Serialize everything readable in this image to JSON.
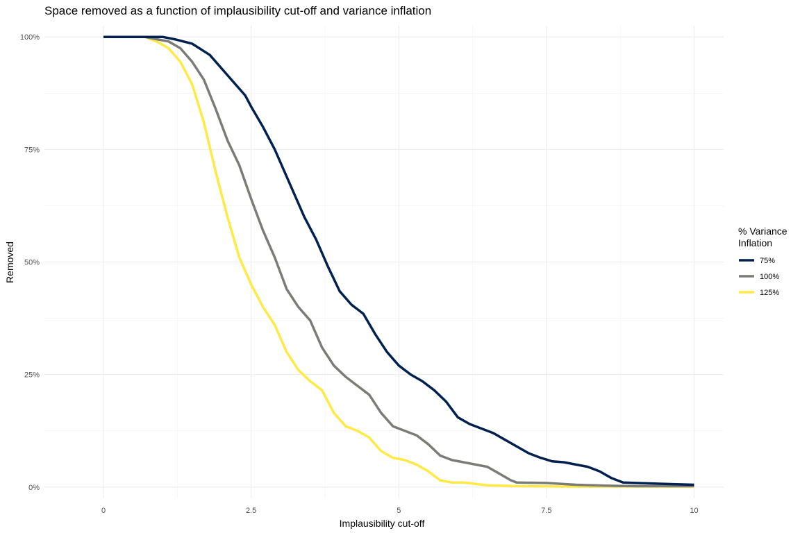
{
  "chart_data": {
    "type": "line",
    "title": "Space removed as a function of implausibility cut-off and variance inflation",
    "xlabel": "Implausibility cut-off",
    "ylabel": "Removed",
    "xlim": [
      -1.0,
      10.5
    ],
    "ylim": [
      -0.025,
      1.025
    ],
    "x_ticks": [
      0,
      2.5,
      5,
      7.5,
      10
    ],
    "x_tick_labels": [
      "0",
      "2.5",
      "5",
      "7.5",
      "10"
    ],
    "y_ticks": [
      0,
      0.25,
      0.5,
      0.75,
      1.0
    ],
    "y_tick_labels": [
      "0%",
      "25%",
      "50%",
      "75%",
      "100%"
    ],
    "grid": true,
    "legend": {
      "title_line1": "% Variance",
      "title_line2": "Inflation",
      "placement": "right"
    },
    "series": [
      {
        "name": "75%",
        "color": "#00204D",
        "x": [
          0,
          0.7,
          1.0,
          1.2,
          1.5,
          1.8,
          2.0,
          2.2,
          2.4,
          2.5,
          2.7,
          2.9,
          3.0,
          3.2,
          3.4,
          3.6,
          3.8,
          4.0,
          4.2,
          4.4,
          4.6,
          4.8,
          5.0,
          5.2,
          5.4,
          5.6,
          5.8,
          6.0,
          6.2,
          6.4,
          6.6,
          6.8,
          7.0,
          7.2,
          7.4,
          7.6,
          7.8,
          8.0,
          8.2,
          8.4,
          8.6,
          8.8,
          9.0,
          9.5,
          10.0
        ],
        "y": [
          1.0,
          1.0,
          1.0,
          0.995,
          0.985,
          0.96,
          0.93,
          0.9,
          0.87,
          0.845,
          0.8,
          0.75,
          0.72,
          0.66,
          0.6,
          0.55,
          0.49,
          0.435,
          0.405,
          0.385,
          0.34,
          0.3,
          0.27,
          0.25,
          0.235,
          0.215,
          0.19,
          0.155,
          0.14,
          0.13,
          0.12,
          0.105,
          0.09,
          0.075,
          0.065,
          0.057,
          0.055,
          0.05,
          0.045,
          0.035,
          0.02,
          0.01,
          0.009,
          0.007,
          0.005
        ]
      },
      {
        "name": "100%",
        "color": "#7C7B78",
        "x": [
          0,
          0.7,
          0.9,
          1.1,
          1.3,
          1.5,
          1.7,
          1.9,
          2.1,
          2.3,
          2.5,
          2.7,
          2.9,
          3.1,
          3.3,
          3.5,
          3.7,
          3.9,
          4.1,
          4.3,
          4.5,
          4.7,
          4.9,
          5.1,
          5.3,
          5.5,
          5.7,
          5.9,
          6.1,
          6.3,
          6.5,
          6.7,
          6.9,
          7.0,
          7.5,
          8.0,
          8.5,
          9.0,
          10.0
        ],
        "y": [
          1.0,
          1.0,
          0.995,
          0.99,
          0.975,
          0.945,
          0.905,
          0.84,
          0.77,
          0.715,
          0.64,
          0.57,
          0.51,
          0.44,
          0.4,
          0.37,
          0.31,
          0.27,
          0.245,
          0.225,
          0.205,
          0.165,
          0.135,
          0.125,
          0.115,
          0.095,
          0.07,
          0.06,
          0.055,
          0.05,
          0.045,
          0.03,
          0.015,
          0.01,
          0.009,
          0.005,
          0.003,
          0.002,
          0.002
        ]
      },
      {
        "name": "125%",
        "color": "#FFE945",
        "x": [
          0,
          0.7,
          0.9,
          1.1,
          1.3,
          1.5,
          1.7,
          1.9,
          2.1,
          2.3,
          2.5,
          2.7,
          2.9,
          3.1,
          3.3,
          3.5,
          3.7,
          3.9,
          4.1,
          4.3,
          4.5,
          4.7,
          4.9,
          5.1,
          5.3,
          5.5,
          5.7,
          5.9,
          6.1,
          6.3,
          6.5,
          7.0,
          8.0,
          9.0,
          10.0
        ],
        "y": [
          1.0,
          1.0,
          0.99,
          0.975,
          0.945,
          0.895,
          0.81,
          0.7,
          0.6,
          0.51,
          0.45,
          0.4,
          0.36,
          0.3,
          0.26,
          0.235,
          0.215,
          0.165,
          0.135,
          0.125,
          0.11,
          0.08,
          0.065,
          0.06,
          0.05,
          0.035,
          0.015,
          0.01,
          0.01,
          0.007,
          0.004,
          0.002,
          0.001,
          0.001,
          0.001
        ]
      }
    ]
  }
}
